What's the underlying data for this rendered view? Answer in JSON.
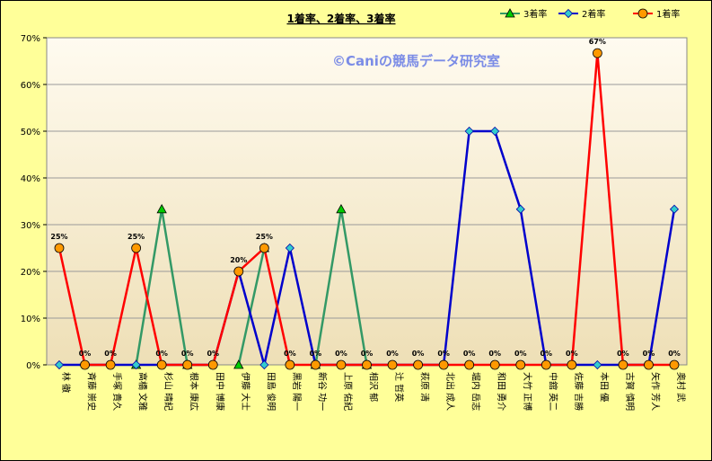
{
  "chart_data": {
    "type": "line",
    "title": "1着率、2着率、3着率",
    "watermark": "©Caniの競馬データ研究室",
    "categories": [
      "林 徹",
      "斉藤 崇史",
      "手塚 貴久",
      "高橋 文雅",
      "杉山 晴紀",
      "根本 康広",
      "田中 博康",
      "伊藤 大士",
      "田島 俊明",
      "黒岩 陽一",
      "新谷 功一",
      "上原 佑紀",
      "相沢 郁",
      "辻 哲英",
      "萩原 清",
      "北出 成人",
      "堀内 岳志",
      "和田 勇介",
      "大竹 正博",
      "中舘 英二",
      "佐藤 吉勝",
      "本田 優",
      "古賀 慎明",
      "矢作 芳人",
      "奥村 武"
    ],
    "ylim": [
      0,
      70
    ],
    "yticks": [
      "0%",
      "10%",
      "20%",
      "30%",
      "40%",
      "50%",
      "60%",
      "70%"
    ],
    "grid": true,
    "legend_position": "top-right",
    "series": [
      {
        "name": "3着率",
        "color": "#339966",
        "marker": "triangle",
        "marker_fill": "#00cc00",
        "values": [
          null,
          null,
          null,
          0,
          33.3,
          0,
          null,
          0,
          25,
          null,
          0,
          33.3,
          0,
          null,
          null,
          null,
          null,
          null,
          null,
          null,
          null,
          null,
          null,
          null,
          null
        ]
      },
      {
        "name": "2着率",
        "color": "#0000cc",
        "marker": "diamond",
        "marker_fill": "#33cccc",
        "values": [
          0,
          0,
          0,
          0,
          0,
          0,
          0,
          20,
          0,
          25,
          0,
          0,
          0,
          0,
          0,
          0,
          50,
          50,
          33.3,
          0,
          0,
          0,
          0,
          0,
          33.3
        ]
      },
      {
        "name": "1着率",
        "color": "#ff0000",
        "marker": "circle",
        "marker_fill": "#ff9900",
        "values": [
          25,
          0,
          0,
          25,
          0,
          0,
          0,
          20,
          25,
          0,
          0,
          0,
          0,
          0,
          0,
          0,
          0,
          0,
          0,
          0,
          0,
          66.7,
          0,
          0,
          0
        ]
      }
    ],
    "data_labels": [
      "25%",
      "0%",
      "0%",
      "25%",
      "0%",
      "0%",
      "0%",
      "20%",
      "25%",
      "0%",
      "0%",
      "0%",
      "0%",
      "0%",
      "0%",
      "0%",
      "0%",
      "0%",
      "0%",
      "0%",
      "0%",
      "67%",
      "0%",
      "0%",
      "0%"
    ]
  }
}
